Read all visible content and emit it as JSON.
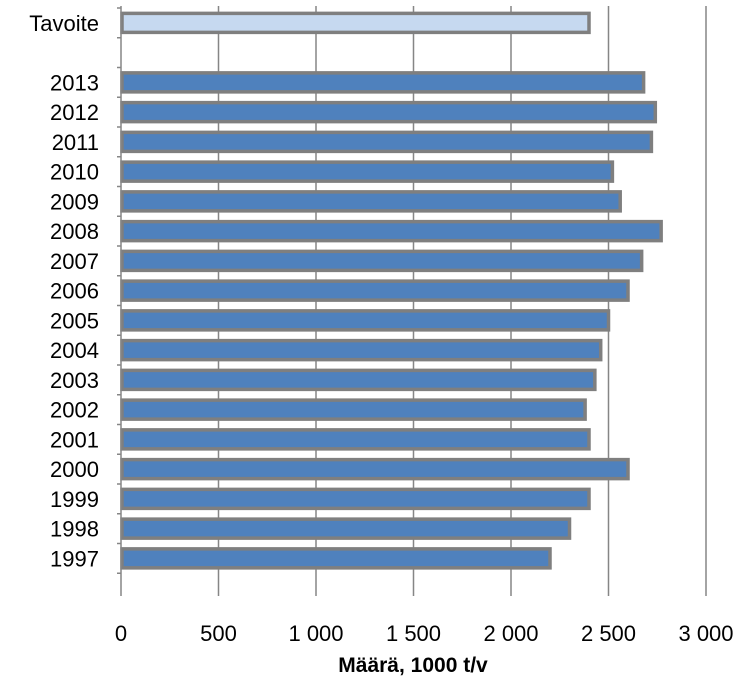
{
  "chart_data": {
    "type": "bar",
    "orientation": "horizontal",
    "title": "",
    "xlabel": "Määrä, 1000 t/v",
    "ylabel": "",
    "xlim": [
      0,
      3000
    ],
    "x_ticks": [
      0,
      500,
      1000,
      1500,
      2000,
      2500,
      3000
    ],
    "x_tick_labels": [
      "0",
      "500",
      "1 000",
      "1 500",
      "2 000",
      "2 500",
      "3 000"
    ],
    "grid": "vertical",
    "legend": "none",
    "categories": [
      "Tavoite",
      "",
      "2013",
      "2012",
      "2011",
      "2010",
      "2009",
      "2008",
      "2007",
      "2006",
      "2005",
      "2004",
      "2003",
      "2002",
      "2001",
      "2000",
      "1999",
      "1998",
      "1997"
    ],
    "values": [
      2400,
      null,
      2680,
      2740,
      2720,
      2520,
      2560,
      2770,
      2670,
      2600,
      2500,
      2460,
      2430,
      2380,
      2400,
      2600,
      2400,
      2300,
      2200
    ],
    "colors": {
      "target_fill": "#c6d9f0",
      "bar_fill": "#4f81bd",
      "bar_border": "#7f7f7f",
      "grid": "#868686"
    }
  }
}
